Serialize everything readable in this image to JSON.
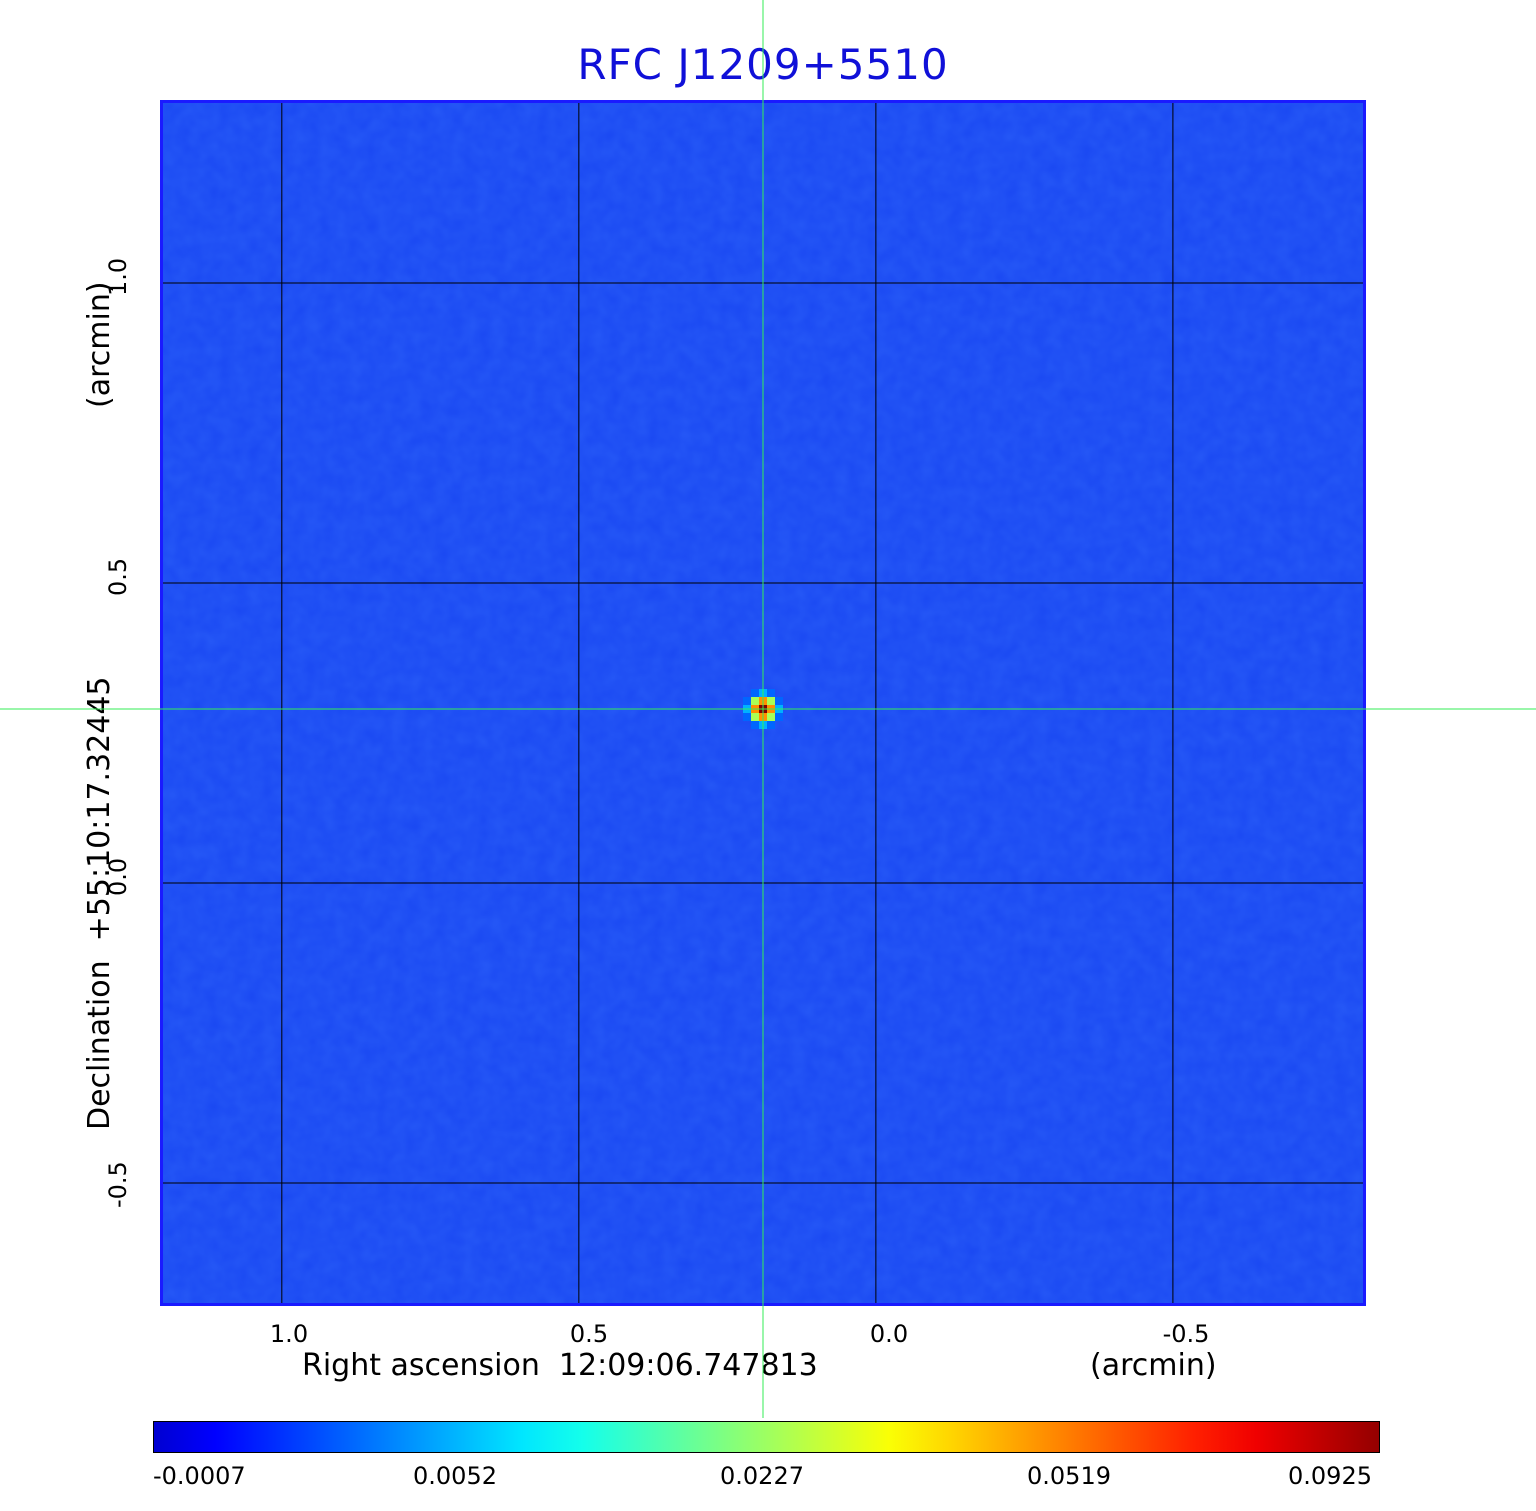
{
  "chart_data": {
    "type": "heatmap",
    "title": "RFC J1209+5510",
    "xlabel": "Right ascension  12:09:06.747813",
    "xunit": "(arcmin)",
    "ylabel": "Declination  +55:10:17.32445",
    "yunit": "(arcmin)",
    "x_ticks": [
      "1.0",
      "0.5",
      "0.0",
      "-0.5"
    ],
    "x_tick_values": [
      1.0,
      0.5,
      0.0,
      -0.5
    ],
    "y_ticks": [
      "1.0",
      "0.5",
      "0.0",
      "-0.5"
    ],
    "y_tick_values": [
      1.0,
      0.5,
      0.0,
      -0.5
    ],
    "xlim": [
      1.2,
      -0.82
    ],
    "ylim": [
      -0.7,
      1.3
    ],
    "grid": true,
    "crosshair": [
      0.19,
      0.29
    ],
    "source_peak": 0.0925,
    "colorbar": {
      "labels": [
        "-0.0007",
        "0.0052",
        "0.0227",
        "0.0519",
        "0.0925"
      ],
      "min": -0.0007,
      "max": 0.0925,
      "colormap": "jet"
    }
  },
  "colors": {
    "title": "#1010d8",
    "background_field": "#1a48f2",
    "crosshair": "#33ee55",
    "grid": "#000000"
  }
}
